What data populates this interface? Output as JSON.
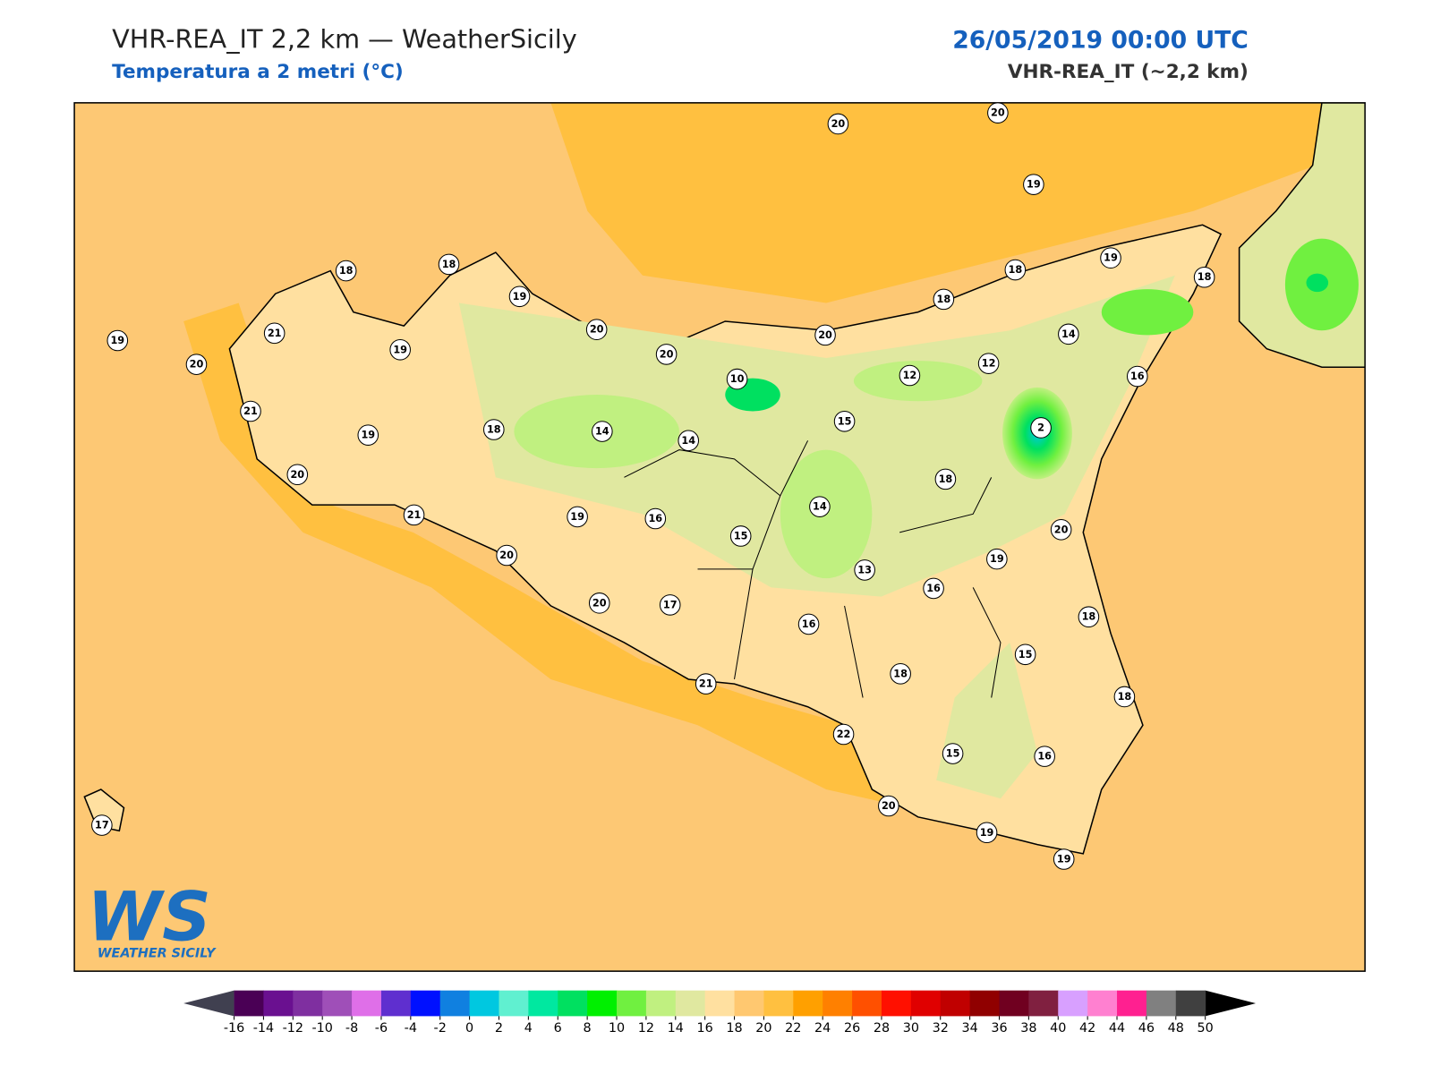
{
  "header": {
    "title": "VHR-REA_IT 2,2 km — WeatherSicily",
    "subtitle": "Temperatura a 2 metri (°C)",
    "datetime": "26/05/2019 00:00 UTC",
    "model": "VHR-REA_IT (~2,2 km)"
  },
  "logo": {
    "mark": "WS",
    "name": "WEATHER SICILY"
  },
  "stations": [
    20,
    20,
    19,
    18,
    18,
    19,
    18,
    19,
    18,
    18,
    19,
    21,
    20,
    19,
    20,
    20,
    20,
    14,
    12,
    12,
    10,
    16,
    21,
    19,
    18,
    14,
    14,
    15,
    2,
    18,
    20,
    14,
    21,
    19,
    16,
    15,
    20,
    19,
    20,
    13,
    16,
    20,
    17,
    16,
    18,
    15,
    18,
    21,
    18,
    22,
    15,
    16,
    20,
    19,
    19,
    17
  ],
  "colorbar": {
    "ticks": [
      -16,
      -14,
      -12,
      -10,
      -8,
      -6,
      -4,
      -2,
      0,
      2,
      4,
      6,
      8,
      10,
      12,
      14,
      16,
      18,
      20,
      22,
      24,
      26,
      28,
      30,
      32,
      34,
      36,
      38,
      40,
      42,
      44,
      46,
      48,
      50
    ],
    "colors": [
      "#4a0055",
      "#6a1090",
      "#7f2fa0",
      "#9f4fb8",
      "#df6fe8",
      "#5f2fcf",
      "#0010ff",
      "#1080e0",
      "#00c8e0",
      "#60f0d0",
      "#00e8a0",
      "#00e060",
      "#00f000",
      "#70f040",
      "#c0f080",
      "#e0e8a0",
      "#ffe0a0",
      "#ffc870",
      "#ffc040",
      "#ffa000",
      "#ff8000",
      "#ff5000",
      "#ff1000",
      "#e00000",
      "#c00000",
      "#900000",
      "#700020",
      "#802040",
      "#d8a0ff",
      "#ff80d0",
      "#ff2090",
      "#808080",
      "#404040"
    ],
    "under_color": "#404050",
    "over_color": "#000000"
  }
}
